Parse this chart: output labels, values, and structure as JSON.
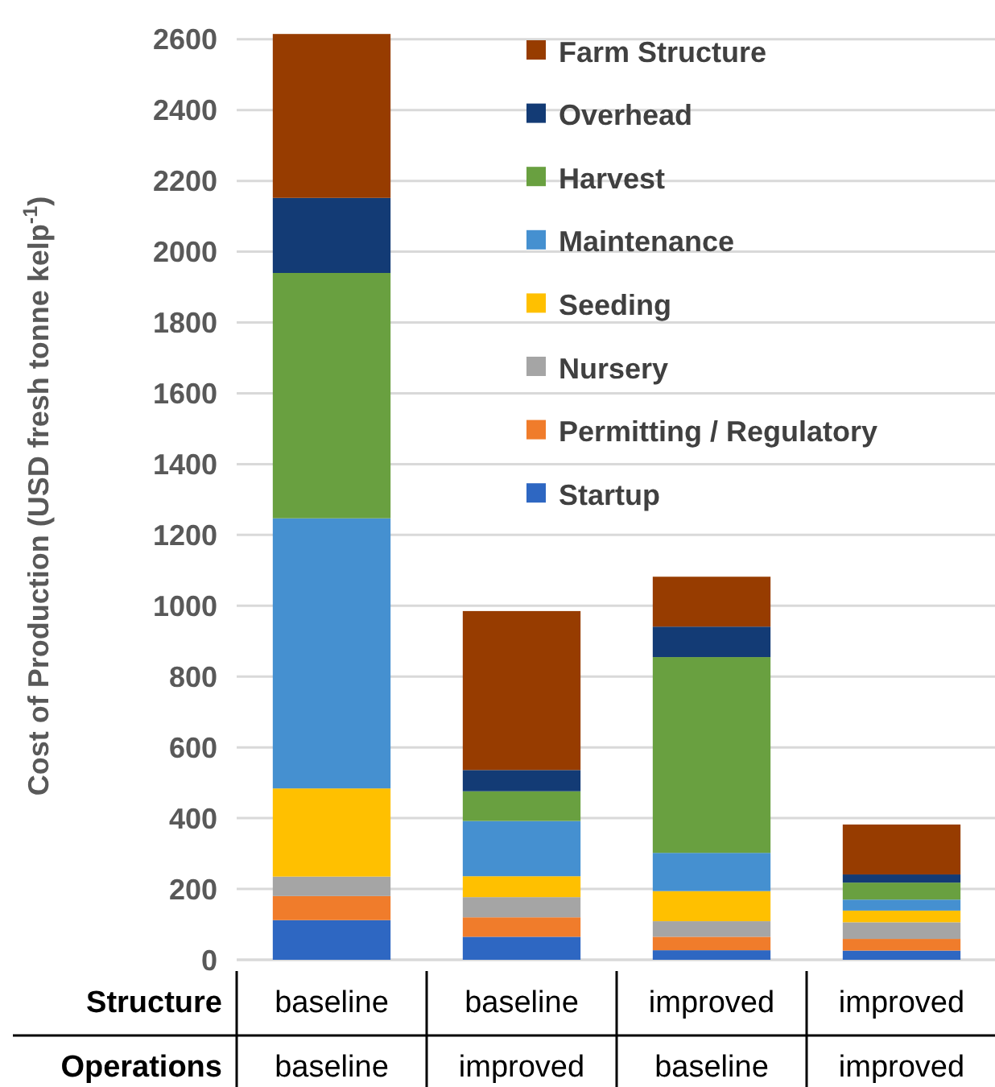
{
  "chart_data": {
    "type": "bar",
    "stacked": true,
    "ylabel": "Cost of Production (USD fresh tonne kelp$^{-1}$)",
    "categories": [
      "baseline\nbaseline",
      "baseline\nimproved",
      "improved\nbaseline",
      "improved\nimproved"
    ],
    "annotations": [
      "Structure",
      "Operations"
    ],
    "ylim": [
      0,
      2620
    ],
    "yticks": [
      0,
      200,
      400,
      600,
      800,
      1000,
      1200,
      1400,
      1600,
      1800,
      2000,
      2200,
      2400,
      2600
    ],
    "grid": "y",
    "legend": "top right",
    "series": [
      {
        "name": "Startup",
        "color": "#2e67c2",
        "values": [
          112,
          65,
          27,
          26
        ]
      },
      {
        "name": "Permitting / Regulatory",
        "color": "#f07c2b",
        "values": [
          68,
          55,
          38,
          33
        ]
      },
      {
        "name": "Nursery",
        "color": "#a5a5a5",
        "values": [
          55,
          57,
          44,
          47
        ]
      },
      {
        "name": "Seeding",
        "color": "#ffc000",
        "values": [
          249,
          59,
          85,
          33
        ]
      },
      {
        "name": "Maintenance",
        "color": "#4590d0",
        "values": [
          763,
          156,
          108,
          31
        ]
      },
      {
        "name": "Harvest",
        "color": "#69a040",
        "values": [
          693,
          84,
          553,
          48
        ]
      },
      {
        "name": "Overhead",
        "color": "#133b75",
        "values": [
          212,
          60,
          86,
          23
        ]
      },
      {
        "name": "Farm Structure",
        "color": "#973c00",
        "values": [
          463,
          449,
          141,
          141
        ]
      }
    ]
  }
}
